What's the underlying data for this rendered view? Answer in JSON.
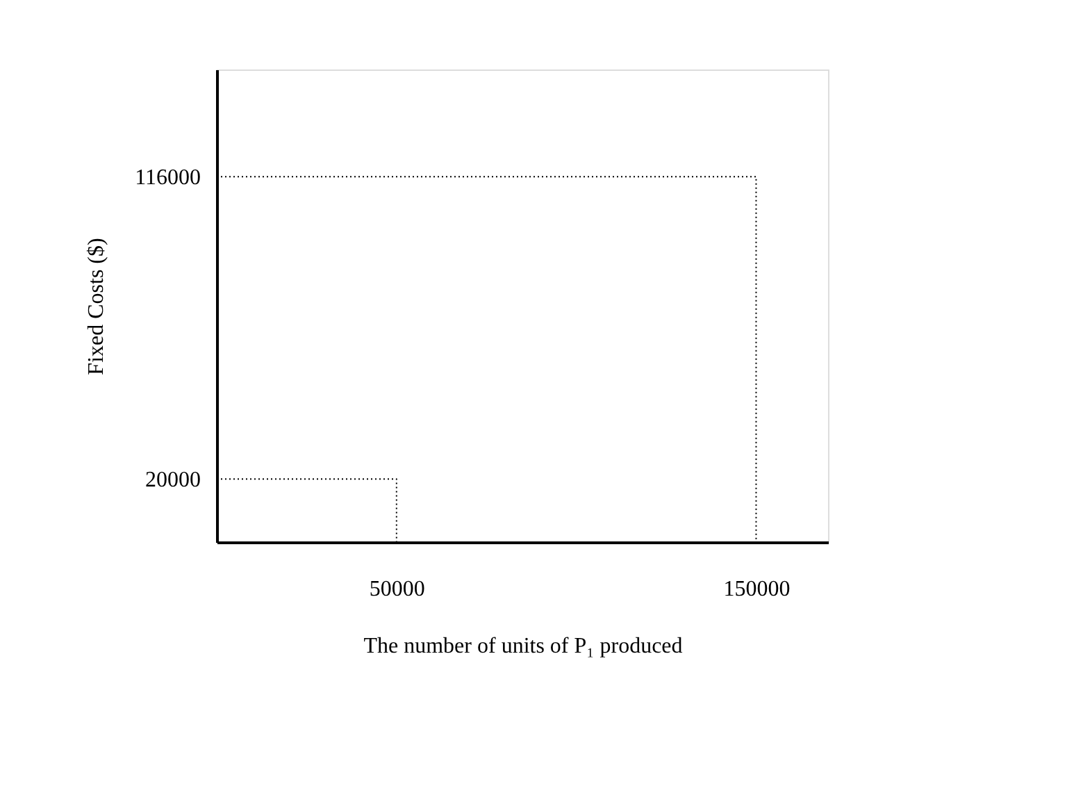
{
  "chart_data": {
    "type": "line",
    "xlabel": "The number of units of P₁ produced",
    "ylabel": "Fixed Costs ($)",
    "series": [
      {
        "x": [
          0,
          50000,
          50000
        ],
        "values": [
          20000,
          20000,
          0
        ],
        "color": "#000000"
      },
      {
        "x": [
          0,
          150000,
          150000
        ],
        "values": [
          116000,
          116000,
          0
        ],
        "color": "#000000"
      }
    ],
    "xlim": [
      0,
      170000
    ],
    "ylim": [
      0,
      150000
    ],
    "xticks": [
      50000,
      150000
    ],
    "yticks": [
      20000,
      116000
    ],
    "line_style": "dotted",
    "grid": false,
    "legend": false
  }
}
